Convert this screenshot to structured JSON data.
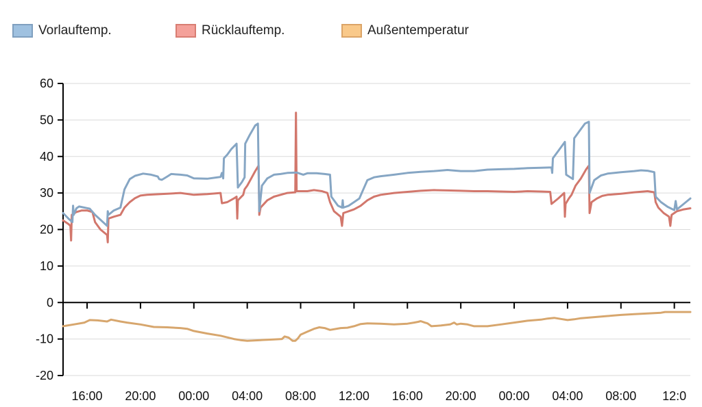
{
  "legend": [
    {
      "label": "Vorlauftemp.",
      "fill": "#9fc1e0",
      "stroke": "#7f9fbf"
    },
    {
      "label": "Rücklauftemp.",
      "fill": "#f4a19a",
      "stroke": "#d87d72"
    },
    {
      "label": "Außentemperatur",
      "fill": "#f9c98a",
      "stroke": "#dba467"
    }
  ],
  "chart_data": {
    "type": "line",
    "title": "",
    "xlabel": "",
    "ylabel": "",
    "ylim": [
      -20,
      60
    ],
    "xlim": [
      13.2,
      60.2
    ],
    "y_ticks": [
      "-20",
      "-10",
      "0",
      "10",
      "20",
      "30",
      "40",
      "50",
      "60"
    ],
    "x_ticks": [
      {
        "x": 15,
        "label": "16:00"
      },
      {
        "x": 19,
        "label": "20:00"
      },
      {
        "x": 23,
        "label": "00:00"
      },
      {
        "x": 27,
        "label": "04:00"
      },
      {
        "x": 31,
        "label": "08:00"
      },
      {
        "x": 35,
        "label": "12:00"
      },
      {
        "x": 39,
        "label": "16:00"
      },
      {
        "x": 43,
        "label": "20:00"
      },
      {
        "x": 47,
        "label": "00:00"
      },
      {
        "x": 51,
        "label": "04:00"
      },
      {
        "x": 55,
        "label": "08:00"
      },
      {
        "x": 59,
        "label": "12:0"
      }
    ],
    "grid": true,
    "legend_position": "top-left",
    "x_axis_at_y": 0,
    "series": [
      {
        "name": "Vorlauftemp.",
        "color": "#86a6c4",
        "points": [
          [
            13.2,
            24.5
          ],
          [
            13.6,
            23
          ],
          [
            13.9,
            22
          ],
          [
            13.95,
            26.5
          ],
          [
            14.0,
            24
          ],
          [
            14.2,
            25.8
          ],
          [
            14.4,
            26.3
          ],
          [
            14.8,
            26
          ],
          [
            15.2,
            25.7
          ],
          [
            15.6,
            24
          ],
          [
            16.2,
            22
          ],
          [
            16.5,
            21
          ],
          [
            16.55,
            25
          ],
          [
            16.6,
            24
          ],
          [
            17.0,
            25.2
          ],
          [
            17.5,
            26
          ],
          [
            17.8,
            31
          ],
          [
            18.2,
            33.8
          ],
          [
            18.6,
            34.7
          ],
          [
            19.2,
            35.3
          ],
          [
            19.8,
            35
          ],
          [
            20.3,
            34.5
          ],
          [
            20.4,
            33.8
          ],
          [
            20.6,
            33.6
          ],
          [
            21.0,
            34.5
          ],
          [
            21.3,
            35.2
          ],
          [
            22.0,
            35
          ],
          [
            22.5,
            34.8
          ],
          [
            23.0,
            34
          ],
          [
            24.0,
            33.9
          ],
          [
            25.0,
            34.4
          ],
          [
            25.1,
            35.5
          ],
          [
            25.2,
            34
          ],
          [
            25.25,
            39.5
          ],
          [
            25.5,
            40.5
          ],
          [
            25.8,
            42
          ],
          [
            26.2,
            43.5
          ],
          [
            26.3,
            31.5
          ],
          [
            26.6,
            33
          ],
          [
            26.8,
            34.3
          ],
          [
            26.85,
            43.5
          ],
          [
            27.2,
            46
          ],
          [
            27.6,
            48.5
          ],
          [
            27.8,
            49
          ],
          [
            27.9,
            25
          ],
          [
            28.1,
            32
          ],
          [
            28.5,
            34
          ],
          [
            29.0,
            35
          ],
          [
            29.5,
            35.2
          ],
          [
            30.0,
            35.5
          ],
          [
            30.7,
            35.6
          ],
          [
            31.2,
            35
          ],
          [
            31.5,
            35.4
          ],
          [
            32.2,
            35.4
          ],
          [
            32.8,
            35.2
          ],
          [
            33.2,
            35
          ],
          [
            33.3,
            29
          ],
          [
            33.8,
            26.5
          ],
          [
            34.1,
            26
          ],
          [
            34.15,
            28
          ],
          [
            34.2,
            26
          ],
          [
            34.6,
            26.5
          ],
          [
            35.0,
            27.5
          ],
          [
            35.4,
            28.5
          ],
          [
            35.7,
            31
          ],
          [
            36.0,
            33.5
          ],
          [
            36.5,
            34.3
          ],
          [
            37.0,
            34.6
          ],
          [
            38.0,
            35
          ],
          [
            39.0,
            35.5
          ],
          [
            40.0,
            35.8
          ],
          [
            41.0,
            36
          ],
          [
            42.0,
            36.3
          ],
          [
            43.0,
            36
          ],
          [
            44.0,
            36
          ],
          [
            45.0,
            36.4
          ],
          [
            46.0,
            36.5
          ],
          [
            47.0,
            36.6
          ],
          [
            48.0,
            36.8
          ],
          [
            49.0,
            36.9
          ],
          [
            49.8,
            37
          ],
          [
            49.85,
            35.5
          ],
          [
            49.9,
            39.5
          ],
          [
            50.3,
            41.5
          ],
          [
            50.8,
            44
          ],
          [
            50.9,
            35
          ],
          [
            51.4,
            33.8
          ],
          [
            51.5,
            45
          ],
          [
            51.9,
            47
          ],
          [
            52.3,
            49
          ],
          [
            52.6,
            49.5
          ],
          [
            52.65,
            30
          ],
          [
            53.0,
            33.5
          ],
          [
            53.5,
            34.8
          ],
          [
            54.0,
            35.3
          ],
          [
            55.0,
            35.7
          ],
          [
            56.0,
            36
          ],
          [
            56.5,
            36.2
          ],
          [
            57.0,
            36.1
          ],
          [
            57.5,
            35.7
          ],
          [
            57.6,
            29
          ],
          [
            58.0,
            27.5
          ],
          [
            58.5,
            26.2
          ],
          [
            59.0,
            25.3
          ],
          [
            59.1,
            27.8
          ],
          [
            59.2,
            25.5
          ],
          [
            59.7,
            27
          ],
          [
            60.2,
            28.5
          ]
        ]
      },
      {
        "name": "Rücklauftemp.",
        "color": "#d2776c",
        "points": [
          [
            13.2,
            22.5
          ],
          [
            13.6,
            21.5
          ],
          [
            13.75,
            21
          ],
          [
            13.8,
            17
          ],
          [
            13.85,
            24
          ],
          [
            14.2,
            24.8
          ],
          [
            14.6,
            25.2
          ],
          [
            15.0,
            25.2
          ],
          [
            15.4,
            24.8
          ],
          [
            15.6,
            22
          ],
          [
            16.0,
            20
          ],
          [
            16.5,
            18.5
          ],
          [
            16.55,
            16.5
          ],
          [
            16.6,
            23
          ],
          [
            17.0,
            23.5
          ],
          [
            17.5,
            24
          ],
          [
            17.8,
            26
          ],
          [
            18.2,
            27.5
          ],
          [
            18.6,
            28.6
          ],
          [
            19.0,
            29.3
          ],
          [
            19.5,
            29.5
          ],
          [
            20.0,
            29.6
          ],
          [
            21.0,
            29.8
          ],
          [
            22.0,
            30
          ],
          [
            23.0,
            29.5
          ],
          [
            24.0,
            29.7
          ],
          [
            25.0,
            30
          ],
          [
            25.1,
            27.2
          ],
          [
            25.5,
            27.5
          ],
          [
            26.0,
            28.5
          ],
          [
            26.2,
            29
          ],
          [
            26.25,
            23
          ],
          [
            26.3,
            28
          ],
          [
            26.7,
            29.5
          ],
          [
            26.8,
            31
          ],
          [
            27.0,
            32
          ],
          [
            27.3,
            34
          ],
          [
            27.6,
            36
          ],
          [
            27.85,
            37.5
          ],
          [
            27.9,
            24
          ],
          [
            28.0,
            26
          ],
          [
            28.5,
            28
          ],
          [
            29.0,
            29
          ],
          [
            30.0,
            30
          ],
          [
            30.6,
            30.2
          ],
          [
            30.65,
            52
          ],
          [
            30.7,
            30.5
          ],
          [
            31.5,
            30.5
          ],
          [
            32.0,
            30.8
          ],
          [
            32.6,
            30.5
          ],
          [
            33.0,
            30
          ],
          [
            33.2,
            27.5
          ],
          [
            33.5,
            25
          ],
          [
            34.0,
            23.5
          ],
          [
            34.1,
            21
          ],
          [
            34.2,
            24.5
          ],
          [
            35.0,
            25.5
          ],
          [
            35.5,
            26.5
          ],
          [
            36.0,
            28
          ],
          [
            36.5,
            29
          ],
          [
            37.0,
            29.5
          ],
          [
            38.0,
            30
          ],
          [
            39.0,
            30.3
          ],
          [
            40.0,
            30.6
          ],
          [
            41.0,
            30.8
          ],
          [
            42.0,
            30.7
          ],
          [
            43.0,
            30.6
          ],
          [
            44.0,
            30.5
          ],
          [
            45.0,
            30.5
          ],
          [
            46.0,
            30.4
          ],
          [
            47.0,
            30.3
          ],
          [
            48.0,
            30.5
          ],
          [
            49.0,
            30.4
          ],
          [
            49.7,
            30.3
          ],
          [
            49.8,
            27
          ],
          [
            50.3,
            28.5
          ],
          [
            50.75,
            30
          ],
          [
            50.8,
            23.5
          ],
          [
            50.85,
            27
          ],
          [
            51.1,
            28.5
          ],
          [
            51.3,
            29.5
          ],
          [
            51.6,
            32
          ],
          [
            52.0,
            34
          ],
          [
            52.4,
            36.5
          ],
          [
            52.6,
            37.5
          ],
          [
            52.65,
            24.5
          ],
          [
            52.8,
            27.5
          ],
          [
            53.2,
            28.5
          ],
          [
            53.6,
            29.2
          ],
          [
            54.0,
            29.5
          ],
          [
            55.0,
            29.8
          ],
          [
            56.0,
            30.2
          ],
          [
            57.0,
            30.5
          ],
          [
            57.5,
            30.2
          ],
          [
            57.6,
            27.5
          ],
          [
            57.8,
            26
          ],
          [
            58.2,
            24.5
          ],
          [
            58.6,
            23.5
          ],
          [
            58.7,
            21
          ],
          [
            58.8,
            24
          ],
          [
            59.2,
            25
          ],
          [
            59.7,
            25.5
          ],
          [
            60.2,
            25.8
          ]
        ]
      },
      {
        "name": "Außentemperatur",
        "color": "#d7a66d",
        "points": [
          [
            13.2,
            -6.5
          ],
          [
            14.0,
            -6
          ],
          [
            14.8,
            -5.5
          ],
          [
            15.2,
            -4.8
          ],
          [
            15.8,
            -4.9
          ],
          [
            16.5,
            -5.2
          ],
          [
            16.8,
            -4.7
          ],
          [
            17.5,
            -5.2
          ],
          [
            18.0,
            -5.5
          ],
          [
            19.0,
            -6
          ],
          [
            20.0,
            -6.7
          ],
          [
            21.0,
            -6.8
          ],
          [
            22.0,
            -7
          ],
          [
            22.5,
            -7.2
          ],
          [
            23.0,
            -7.8
          ],
          [
            24.0,
            -8.5
          ],
          [
            25.0,
            -9.1
          ],
          [
            26.0,
            -10
          ],
          [
            26.5,
            -10.3
          ],
          [
            27.0,
            -10.5
          ],
          [
            28.0,
            -10.3
          ],
          [
            29.0,
            -10.1
          ],
          [
            29.6,
            -10
          ],
          [
            29.8,
            -9.3
          ],
          [
            30.1,
            -9.6
          ],
          [
            30.4,
            -10.5
          ],
          [
            30.6,
            -10.5
          ],
          [
            30.8,
            -9.8
          ],
          [
            31.0,
            -8.8
          ],
          [
            31.5,
            -8
          ],
          [
            32.0,
            -7.2
          ],
          [
            32.4,
            -6.8
          ],
          [
            32.8,
            -7
          ],
          [
            33.2,
            -7.5
          ],
          [
            34.0,
            -7
          ],
          [
            34.5,
            -6.9
          ],
          [
            35.0,
            -6.5
          ],
          [
            35.5,
            -5.9
          ],
          [
            36.0,
            -5.7
          ],
          [
            37.0,
            -5.8
          ],
          [
            38.0,
            -6
          ],
          [
            39.0,
            -5.8
          ],
          [
            39.5,
            -5.5
          ],
          [
            39.8,
            -5.3
          ],
          [
            40.0,
            -5.1
          ],
          [
            40.3,
            -5.5
          ],
          [
            40.5,
            -5.7
          ],
          [
            40.8,
            -6.5
          ],
          [
            41.5,
            -6.3
          ],
          [
            42.2,
            -6
          ],
          [
            42.5,
            -5.5
          ],
          [
            42.7,
            -6
          ],
          [
            43.0,
            -5.8
          ],
          [
            43.5,
            -6
          ],
          [
            44.0,
            -6.5
          ],
          [
            45.0,
            -6.5
          ],
          [
            46.0,
            -6
          ],
          [
            47.0,
            -5.5
          ],
          [
            48.0,
            -5
          ],
          [
            49.0,
            -4.7
          ],
          [
            49.5,
            -4.4
          ],
          [
            50.0,
            -4.2
          ],
          [
            50.5,
            -4.5
          ],
          [
            51.0,
            -4.8
          ],
          [
            51.5,
            -4.6
          ],
          [
            52.0,
            -4.3
          ],
          [
            53.0,
            -4
          ],
          [
            54.0,
            -3.7
          ],
          [
            55.0,
            -3.4
          ],
          [
            56.0,
            -3.2
          ],
          [
            57.0,
            -3
          ],
          [
            58.0,
            -2.8
          ],
          [
            58.3,
            -2.6
          ],
          [
            59.0,
            -2.6
          ],
          [
            60.2,
            -2.6
          ]
        ]
      }
    ]
  }
}
